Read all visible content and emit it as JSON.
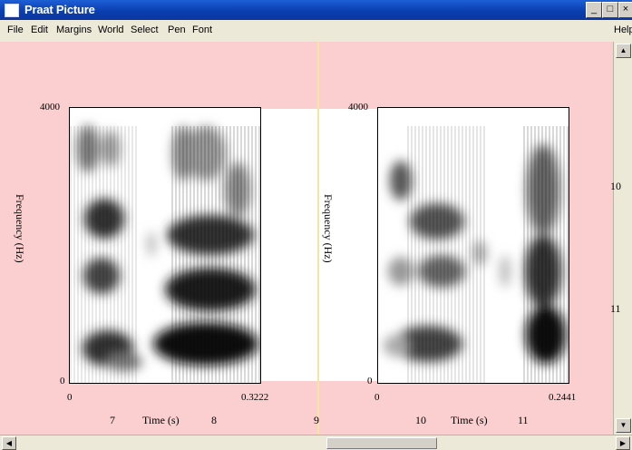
{
  "window": {
    "title": "Praat Picture"
  },
  "menu": [
    "File",
    "Edit",
    "Margins",
    "World",
    "Select",
    "Pen",
    "Font"
  ],
  "menu_help": "Help",
  "spectrograms": [
    {
      "ylabel": "Frequency (Hz)",
      "y_top": "4000",
      "y_bottom": "0",
      "x_left": "0",
      "x_right": "0.3222",
      "xlabel": "Time (s)"
    },
    {
      "ylabel": "Frequency (Hz)",
      "y_top": "4000",
      "y_bottom": "0",
      "x_left": "0",
      "x_right": "0.2441",
      "xlabel": "Time (s)"
    }
  ],
  "ruler": {
    "bottom": [
      "7",
      "8",
      "9",
      "10",
      "11"
    ],
    "right": [
      "10",
      "11"
    ]
  },
  "colors": {
    "picture_bg": "#fbcfcf",
    "selection": "#f2e6a0",
    "titlebar": "#0a3fb0"
  }
}
